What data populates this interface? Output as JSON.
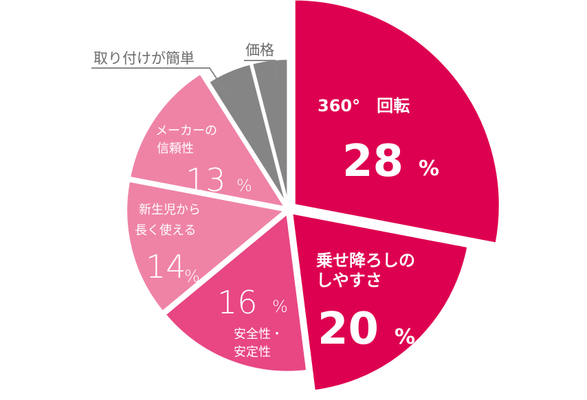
{
  "chart_data": {
    "type": "pie",
    "slices": [
      {
        "label": "360° 回転",
        "value": 28,
        "color": "#de0050"
      },
      {
        "label": "乗せ降ろしのしやすさ",
        "value": 20,
        "color": "#de0050"
      },
      {
        "label": "安全性・安定性",
        "value": 16,
        "color": "#e84783"
      },
      {
        "label": "新生児から長く使える",
        "value": 14,
        "color": "#ef83a6"
      },
      {
        "label": "メーカーの信頼性",
        "value": 13,
        "color": "#ef83a6"
      },
      {
        "label": "取り付けが簡単",
        "value": 5,
        "color": "#858585"
      },
      {
        "label": "価格",
        "value": 4,
        "color": "#858585"
      }
    ]
  },
  "labels": {
    "rotate": {
      "name": "360°　回転",
      "num": "28",
      "pct": "%"
    },
    "loading": {
      "line1": "乗せ降ろしの",
      "line2": "しやすさ",
      "num": "20",
      "pct": "%"
    },
    "safety": {
      "num": "16",
      "pct": "%",
      "line1": "安全性・",
      "line2": "安定性"
    },
    "newborn": {
      "line1": "新生児から",
      "line2": "長く使える",
      "num": "14",
      "pct": "%"
    },
    "maker": {
      "line1": "メーカーの",
      "line2": "信頼性",
      "num": "13",
      "pct": "%"
    },
    "install": {
      "name": "取り付けが簡単"
    },
    "price": {
      "name": "価格"
    }
  }
}
